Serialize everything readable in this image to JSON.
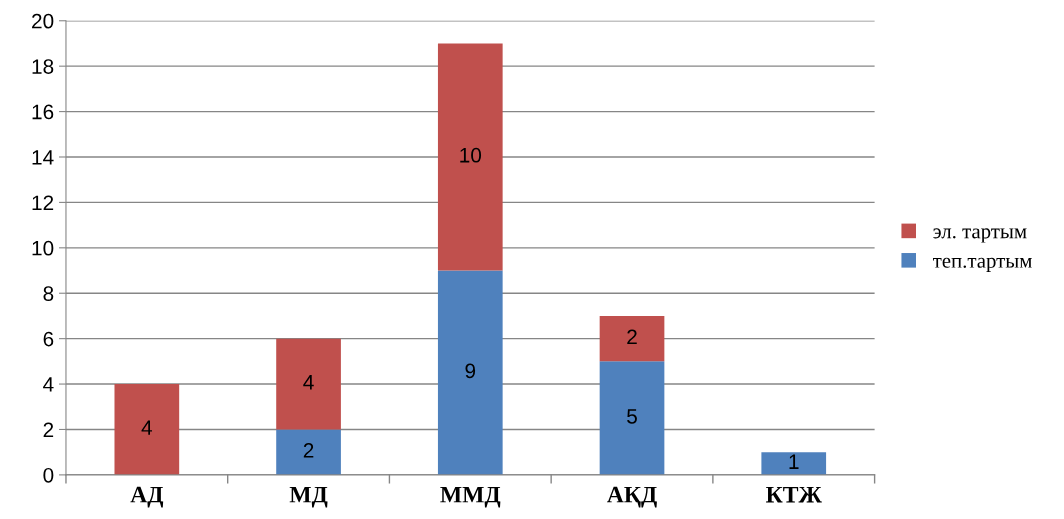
{
  "chart_data": {
    "type": "bar",
    "stacked": true,
    "categories": [
      "АД",
      "МД",
      "ММД",
      "АҚД",
      "КТЖ"
    ],
    "series": [
      {
        "name": "теп.тартым",
        "color": "#4f81bd",
        "values": [
          null,
          2,
          9,
          5,
          1
        ]
      },
      {
        "name": "эл. тартым",
        "color": "#c0504d",
        "values": [
          4,
          4,
          10,
          2,
          null
        ]
      }
    ],
    "ylim": [
      0,
      20
    ],
    "yticks": [
      0,
      2,
      4,
      6,
      8,
      10,
      12,
      14,
      16,
      18,
      20
    ],
    "grid": "y",
    "legend": "right",
    "data_labels": true
  }
}
